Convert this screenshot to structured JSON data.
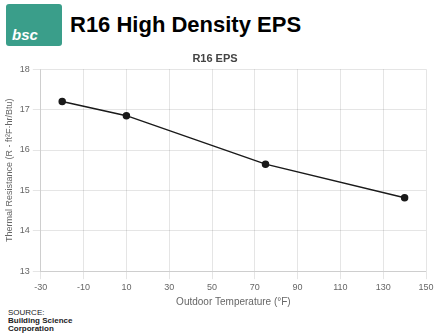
{
  "chart_data": {
    "type": "line",
    "title": "R16 High Density EPS",
    "subtitle": "R16 EPS",
    "xlabel": "Outdoor Temperature (°F)",
    "ylabel": "Thermal Resistance (R - ft²F·hr/Btu)",
    "x": [
      -20,
      10,
      75,
      140
    ],
    "values": [
      17.2,
      16.85,
      15.65,
      14.82
    ],
    "color": "#1a1a1a",
    "marker": "circle",
    "xlim": [
      -30,
      150
    ],
    "ylim": [
      13,
      18
    ],
    "xticks": [
      -30,
      -10,
      10,
      30,
      50,
      70,
      90,
      110,
      130,
      150
    ],
    "yticks": [
      13,
      14,
      15,
      16,
      17,
      18
    ],
    "grid": true,
    "annotations": [
      "bsc",
      "SOURCE:",
      "Building Science",
      "Corporation"
    ]
  }
}
